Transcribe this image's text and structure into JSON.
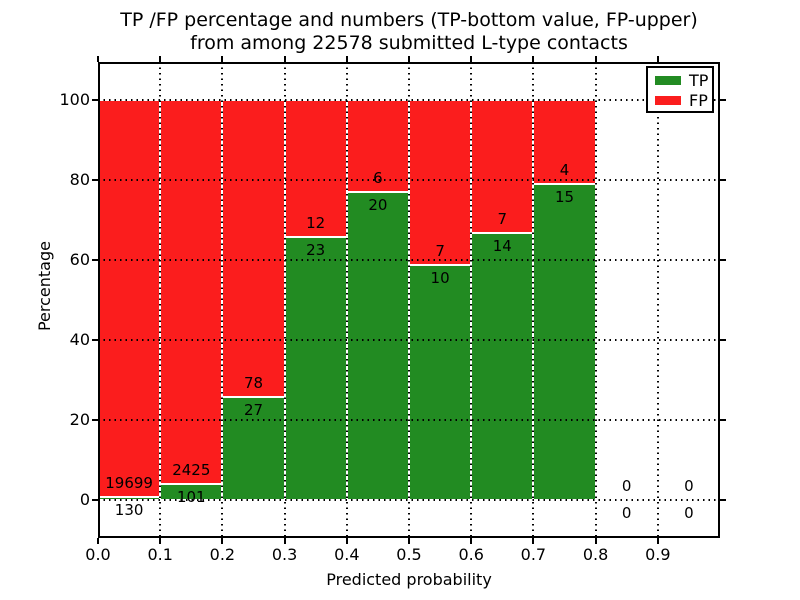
{
  "figure": {
    "title_line1": "TP /FP percentage and numbers (TP-bottom value, FP-upper)",
    "title_line2": "from among 22578 submitted L-type contacts"
  },
  "chart_data": {
    "type": "bar",
    "stacked": true,
    "title": "TP /FP percentage and numbers (TP-bottom value, FP-upper)\nfrom among 22578 submitted L-type contacts",
    "xlabel": "Predicted probability",
    "ylabel": "Percentage",
    "x_tick_labels": [
      "0.0",
      "0.1",
      "0.2",
      "0.3",
      "0.4",
      "0.5",
      "0.6",
      "0.7",
      "0.8",
      "0.9"
    ],
    "y_tick_values": [
      0,
      20,
      40,
      60,
      80,
      100
    ],
    "xlim": [
      0.0,
      1.0
    ],
    "ylim": [
      -9.5,
      109.5
    ],
    "grid": true,
    "total_submitted": 22578,
    "categories": [
      "0.0-0.1",
      "0.1-0.2",
      "0.2-0.3",
      "0.3-0.4",
      "0.4-0.5",
      "0.5-0.6",
      "0.6-0.7",
      "0.7-0.8",
      "0.8-0.9",
      "0.9-1.0"
    ],
    "bins": [
      {
        "x0": 0.0,
        "x1": 0.1,
        "tp_count": 130,
        "fp_count": 19699,
        "tp_pct": 0.66,
        "fp_pct": 99.34
      },
      {
        "x0": 0.1,
        "x1": 0.2,
        "tp_count": 101,
        "fp_count": 2425,
        "tp_pct": 4.0,
        "fp_pct": 96.0
      },
      {
        "x0": 0.2,
        "x1": 0.3,
        "tp_count": 27,
        "fp_count": 78,
        "tp_pct": 25.7,
        "fp_pct": 74.3
      },
      {
        "x0": 0.3,
        "x1": 0.4,
        "tp_count": 23,
        "fp_count": 12,
        "tp_pct": 65.7,
        "fp_pct": 34.3
      },
      {
        "x0": 0.4,
        "x1": 0.5,
        "tp_count": 20,
        "fp_count": 6,
        "tp_pct": 76.9,
        "fp_pct": 23.1
      },
      {
        "x0": 0.5,
        "x1": 0.6,
        "tp_count": 10,
        "fp_count": 7,
        "tp_pct": 58.8,
        "fp_pct": 41.2
      },
      {
        "x0": 0.6,
        "x1": 0.7,
        "tp_count": 14,
        "fp_count": 7,
        "tp_pct": 66.7,
        "fp_pct": 33.3
      },
      {
        "x0": 0.7,
        "x1": 0.8,
        "tp_count": 15,
        "fp_count": 4,
        "tp_pct": 78.9,
        "fp_pct": 21.1
      },
      {
        "x0": 0.8,
        "x1": 0.9,
        "tp_count": 0,
        "fp_count": 0,
        "tp_pct": 0,
        "fp_pct": 0
      },
      {
        "x0": 0.9,
        "x1": 1.0,
        "tp_count": 0,
        "fp_count": 0,
        "tp_pct": 0,
        "fp_pct": 0
      }
    ],
    "legend": {
      "position": "upper right",
      "entries": [
        {
          "label": "TP",
          "color": "#228b22"
        },
        {
          "label": "FP",
          "color": "#fb1d1d"
        }
      ]
    },
    "colors": {
      "tp": "#228b22",
      "fp": "#fb1d1d",
      "grid": "#000000",
      "frame": "#000000",
      "bar_edge": "#ffffff"
    }
  }
}
